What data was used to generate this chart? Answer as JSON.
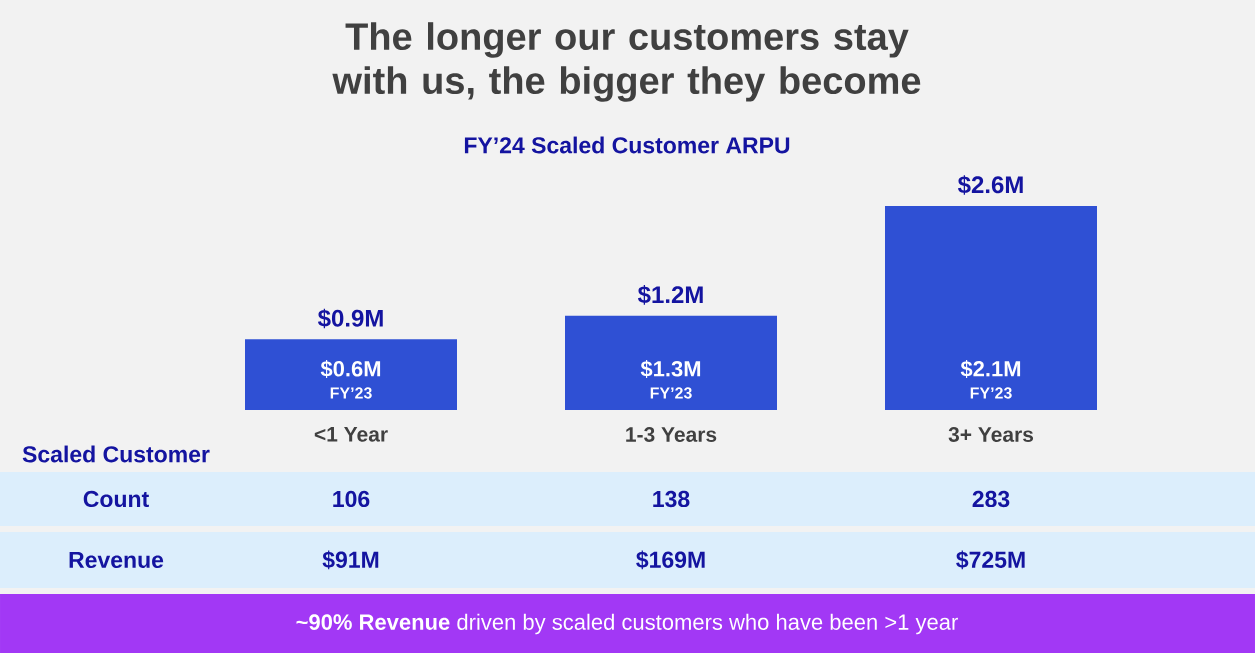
{
  "chart_data": {
    "type": "bar",
    "title": "The longer our customers stay with us, the bigger they become",
    "subtitle": "FY’24 Scaled Customer ARPU",
    "categories": [
      "<1 Year",
      "1-3 Years",
      "3+ Years"
    ],
    "values": [
      0.9,
      1.2,
      2.6
    ],
    "value_labels": [
      "$0.9M",
      "$1.2M",
      "$2.6M"
    ],
    "color": "#2f50d4",
    "annotations": [
      "$0.6M",
      "$1.3M",
      "$2.1M",
      "FY’23",
      "FY’23",
      "FY’23",
      "Scaled Customer",
      "Count",
      "106",
      "138",
      "283",
      "Revenue",
      "$91M",
      "$169M",
      "$725M",
      "**~90% Revenue** driven by scaled customers who have been >1 year"
    ]
  }
}
